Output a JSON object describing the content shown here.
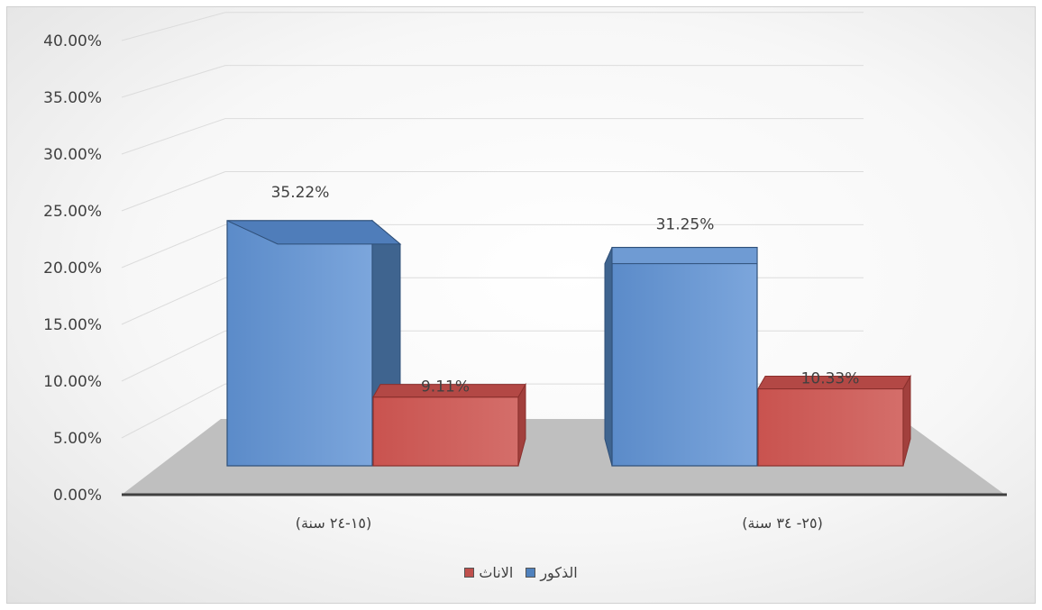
{
  "chart_data": {
    "type": "bar",
    "categories": [
      "(١٥-٢٤ سنة)",
      "(٢٥- ٣٤ سنة)"
    ],
    "series": [
      {
        "name": "الذكور",
        "values": [
          35.22,
          31.25
        ],
        "labels": [
          "35.22%",
          "31.25%"
        ],
        "color": "#4f81bd"
      },
      {
        "name": "الاناث",
        "values": [
          9.11,
          10.33
        ],
        "labels": [
          "9.11%",
          "10.33%"
        ],
        "color": "#c0504d"
      }
    ],
    "yticks": [
      "0.00%",
      "5.00%",
      "10.00%",
      "15.00%",
      "20.00%",
      "25.00%",
      "30.00%",
      "35.00%",
      "40.00%"
    ],
    "ylim": [
      0,
      40
    ],
    "grid": true,
    "legend": "bottom"
  }
}
